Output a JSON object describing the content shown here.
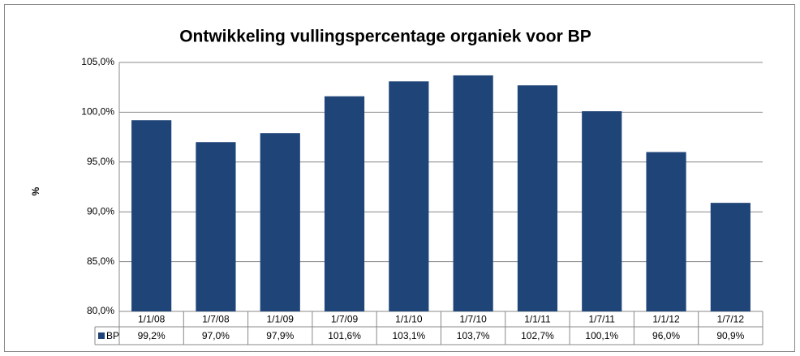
{
  "chart_data": {
    "type": "bar",
    "title": "Ontwikkeling vullingspercentage organiek voor BP",
    "y_label": "%",
    "categories": [
      "1/1/08",
      "1/7/08",
      "1/1/09",
      "1/7/09",
      "1/1/10",
      "1/7/10",
      "1/1/11",
      "1/7/11",
      "1/1/12",
      "1/7/12"
    ],
    "series": [
      {
        "name": "BP",
        "color": "#1f4478",
        "values": [
          99.2,
          97.0,
          97.9,
          101.6,
          103.1,
          103.7,
          102.7,
          100.1,
          96.0,
          90.9
        ],
        "value_labels": [
          "99,2%",
          "97,0%",
          "97,9%",
          "101,6%",
          "103,1%",
          "103,7%",
          "102,7%",
          "100,1%",
          "96,0%",
          "90,9%"
        ]
      }
    ],
    "ylim": [
      80,
      105
    ],
    "yticks": [
      {
        "value": 80,
        "label": "80,0%"
      },
      {
        "value": 85,
        "label": "85,0%"
      },
      {
        "value": 90,
        "label": "90,0%"
      },
      {
        "value": 95,
        "label": "95,0%"
      },
      {
        "value": 100,
        "label": "100,0%"
      },
      {
        "value": 105,
        "label": "105,0%"
      }
    ],
    "grid": true
  }
}
